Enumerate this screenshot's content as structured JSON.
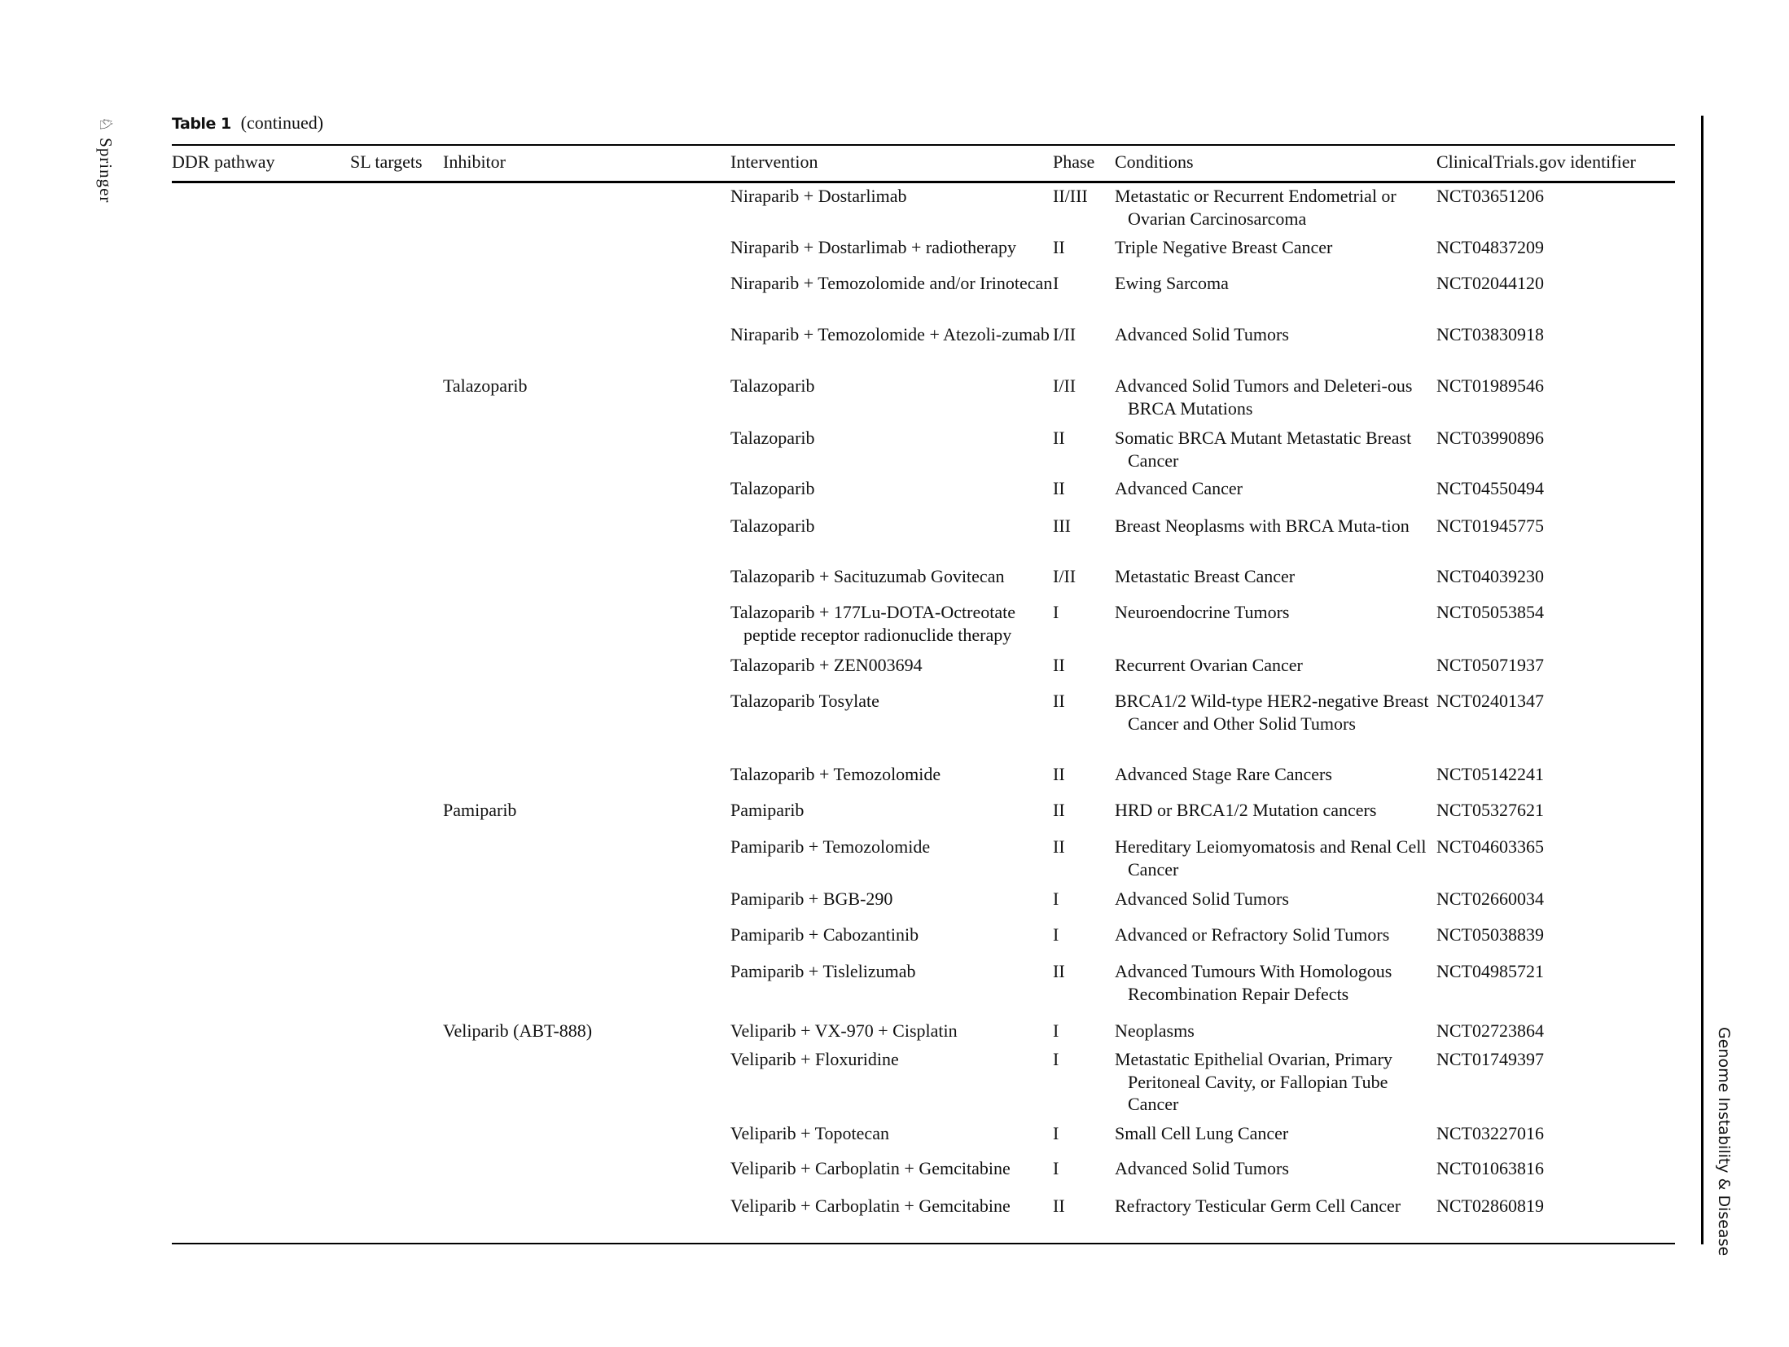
{
  "header": {
    "table_label": "Table 1",
    "continued": "(continued)",
    "publisher": "Springer",
    "journal": "Genome Instability & Disease",
    "publisher_icon": "springer-horse-logo"
  },
  "columns": [
    "DDR pathway",
    "SL targets",
    "Inhibitor",
    "Intervention",
    "Phase",
    "Conditions",
    "ClinicalTrials.gov identifier"
  ],
  "rows": [
    {
      "inhibitor": "",
      "intervention": "Niraparib + Dostarlimab",
      "phase": "II/III",
      "conditions": "Metastatic or Recurrent Endometrial or Ovarian Carcinosarcoma",
      "id": "NCT03651206"
    },
    {
      "inhibitor": "",
      "intervention": "Niraparib + Dostarlimab + radiotherapy",
      "phase": "II",
      "conditions": "Triple Negative Breast Cancer",
      "id": "NCT04837209"
    },
    {
      "inhibitor": "",
      "intervention": "Niraparib + Temozolomide and/or Irinotecan",
      "phase": "I",
      "conditions": "Ewing Sarcoma",
      "id": "NCT02044120"
    },
    {
      "inhibitor": "",
      "intervention": "Niraparib + Temozolomide + Atezoli-zumab",
      "phase": "I/II",
      "conditions": "Advanced Solid Tumors",
      "id": "NCT03830918"
    },
    {
      "inhibitor": "Talazoparib",
      "intervention": "Talazoparib",
      "phase": "I/II",
      "conditions": "Advanced Solid Tumors and Deleteri-ous BRCA Mutations",
      "id": "NCT01989546"
    },
    {
      "inhibitor": "",
      "intervention": "Talazoparib",
      "phase": "II",
      "conditions": "Somatic BRCA Mutant Metastatic Breast Cancer",
      "id": "NCT03990896"
    },
    {
      "inhibitor": "",
      "intervention": "Talazoparib",
      "phase": "II",
      "conditions": "Advanced Cancer",
      "id": "NCT04550494"
    },
    {
      "inhibitor": "",
      "intervention": "Talazoparib",
      "phase": "III",
      "conditions": "Breast Neoplasms with BRCA Muta-tion",
      "id": "NCT01945775"
    },
    {
      "inhibitor": "",
      "intervention": "Talazoparib + Sacituzumab Govitecan",
      "phase": "I/II",
      "conditions": "Metastatic Breast Cancer",
      "id": "NCT04039230"
    },
    {
      "inhibitor": "",
      "intervention": "Talazoparib + 177Lu-DOTA-Octreotate peptide receptor radionuclide therapy",
      "phase": "I",
      "conditions": "Neuroendocrine Tumors",
      "id": "NCT05053854"
    },
    {
      "inhibitor": "",
      "intervention": "Talazoparib + ZEN003694",
      "phase": "II",
      "conditions": "Recurrent Ovarian Cancer",
      "id": "NCT05071937"
    },
    {
      "inhibitor": "",
      "intervention": "Talazoparib Tosylate",
      "phase": "II",
      "conditions": "BRCA1/2 Wild-type HER2-negative Breast Cancer and Other Solid Tumors",
      "id": "NCT02401347"
    },
    {
      "inhibitor": "",
      "intervention": "Talazoparib + Temozolomide",
      "phase": "II",
      "conditions": "Advanced Stage Rare Cancers",
      "id": "NCT05142241"
    },
    {
      "inhibitor": "Pamiparib",
      "intervention": "Pamiparib",
      "phase": "II",
      "conditions": "HRD or BRCA1/2 Mutation cancers",
      "id": "NCT05327621"
    },
    {
      "inhibitor": "",
      "intervention": "Pamiparib + Temozolomide",
      "phase": "II",
      "conditions": "Hereditary Leiomyomatosis and Renal Cell Cancer",
      "id": "NCT04603365"
    },
    {
      "inhibitor": "",
      "intervention": "Pamiparib + BGB-290",
      "phase": "I",
      "conditions": "Advanced Solid Tumors",
      "id": "NCT02660034"
    },
    {
      "inhibitor": "",
      "intervention": "Pamiparib + Cabozantinib",
      "phase": "I",
      "conditions": "Advanced or Refractory Solid Tumors",
      "id": "NCT05038839"
    },
    {
      "inhibitor": "",
      "intervention": "Pamiparib + Tislelizumab",
      "phase": "II",
      "conditions": "Advanced Tumours With Homologous Recombination Repair Defects",
      "id": "NCT04985721"
    },
    {
      "inhibitor": "Veliparib (ABT-888)",
      "intervention": "Veliparib + VX-970 + Cisplatin",
      "phase": "I",
      "conditions": "Neoplasms",
      "id": "NCT02723864"
    },
    {
      "inhibitor": "",
      "intervention": "Veliparib + Floxuridine",
      "phase": "I",
      "conditions": "Metastatic Epithelial Ovarian, Primary Peritoneal Cavity, or Fallopian Tube Cancer",
      "id": "NCT01749397"
    },
    {
      "inhibitor": "",
      "intervention": "Veliparib + Topotecan",
      "phase": "I",
      "conditions": "Small Cell Lung Cancer",
      "id": "NCT03227016"
    },
    {
      "inhibitor": "",
      "intervention": "Veliparib + Carboplatin + Gemcitabine",
      "phase": "I",
      "conditions": "Advanced Solid Tumors",
      "id": "NCT01063816"
    },
    {
      "inhibitor": "",
      "intervention": "Veliparib + Carboplatin + Gemcitabine",
      "phase": "II",
      "conditions": "Refractory Testicular Germ Cell Cancer",
      "id": "NCT02860819"
    }
  ]
}
